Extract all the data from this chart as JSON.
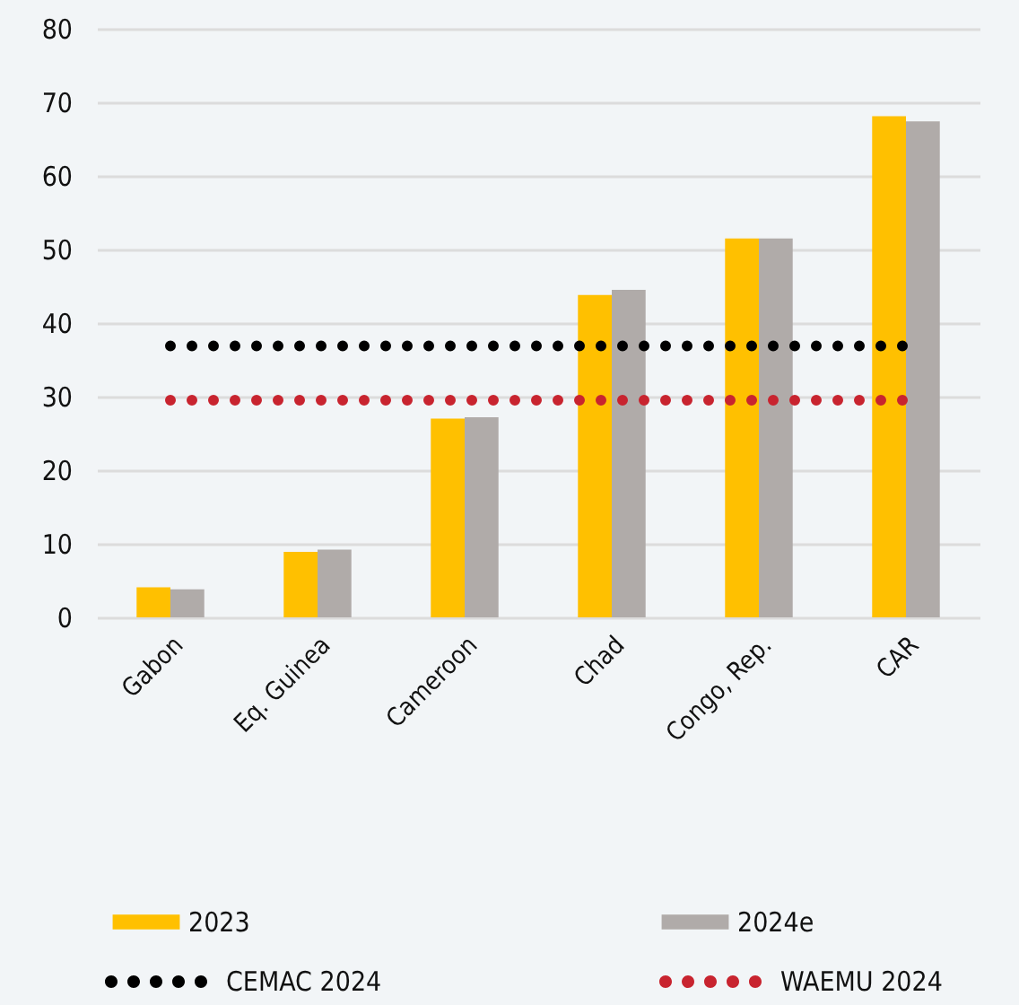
{
  "chart_data": {
    "type": "bar",
    "categories": [
      "Gabon",
      "Eq. Guinea",
      "Cameroon",
      "Chad",
      "Congo, Rep.",
      "CAR"
    ],
    "series": [
      {
        "name": "2023",
        "color": "#ffc000",
        "values": [
          4.1,
          8.9,
          27.0,
          43.8,
          51.5,
          68.1
        ]
      },
      {
        "name": "2024e",
        "color": "#b0aba9",
        "values": [
          3.8,
          9.2,
          27.2,
          44.5,
          51.5,
          67.4
        ]
      },
      {
        "name": "CEMAC 2024",
        "type": "line",
        "color": "#000000",
        "values": [
          36.9,
          36.9,
          36.9,
          36.9,
          36.9,
          36.9
        ]
      },
      {
        "name": "WAEMU 2024",
        "type": "line",
        "color": "#c8242f",
        "values": [
          29.5,
          29.5,
          29.5,
          29.5,
          29.5,
          29.5
        ]
      }
    ],
    "line_style": "dotted",
    "ylim": [
      0,
      80
    ],
    "yticks": [
      0,
      10,
      20,
      30,
      40,
      50,
      60,
      70,
      80
    ],
    "grid": "y",
    "legend": "bottom"
  }
}
